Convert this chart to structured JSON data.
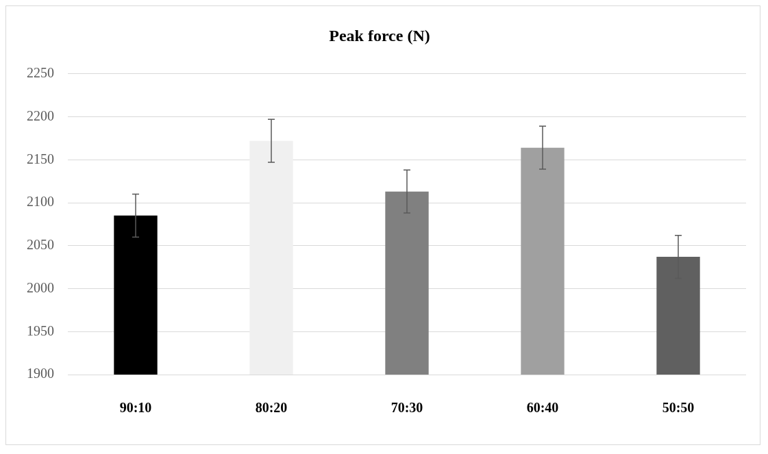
{
  "chart_data": {
    "type": "bar",
    "title": "Peak force (N)",
    "categories": [
      "90:10",
      "80:20",
      "70:30",
      "60:40",
      "50:50"
    ],
    "values": [
      2085,
      2172,
      2113,
      2164,
      2037
    ],
    "errors": [
      25,
      25,
      25,
      25,
      25
    ],
    "colors": [
      "#000000",
      "#f0f0f0",
      "#808080",
      "#a0a0a0",
      "#606060"
    ],
    "ylim": [
      1900,
      2250
    ],
    "yticks": [
      1900,
      1950,
      2000,
      2050,
      2100,
      2150,
      2200,
      2250
    ],
    "grid": "y",
    "legend": false
  }
}
